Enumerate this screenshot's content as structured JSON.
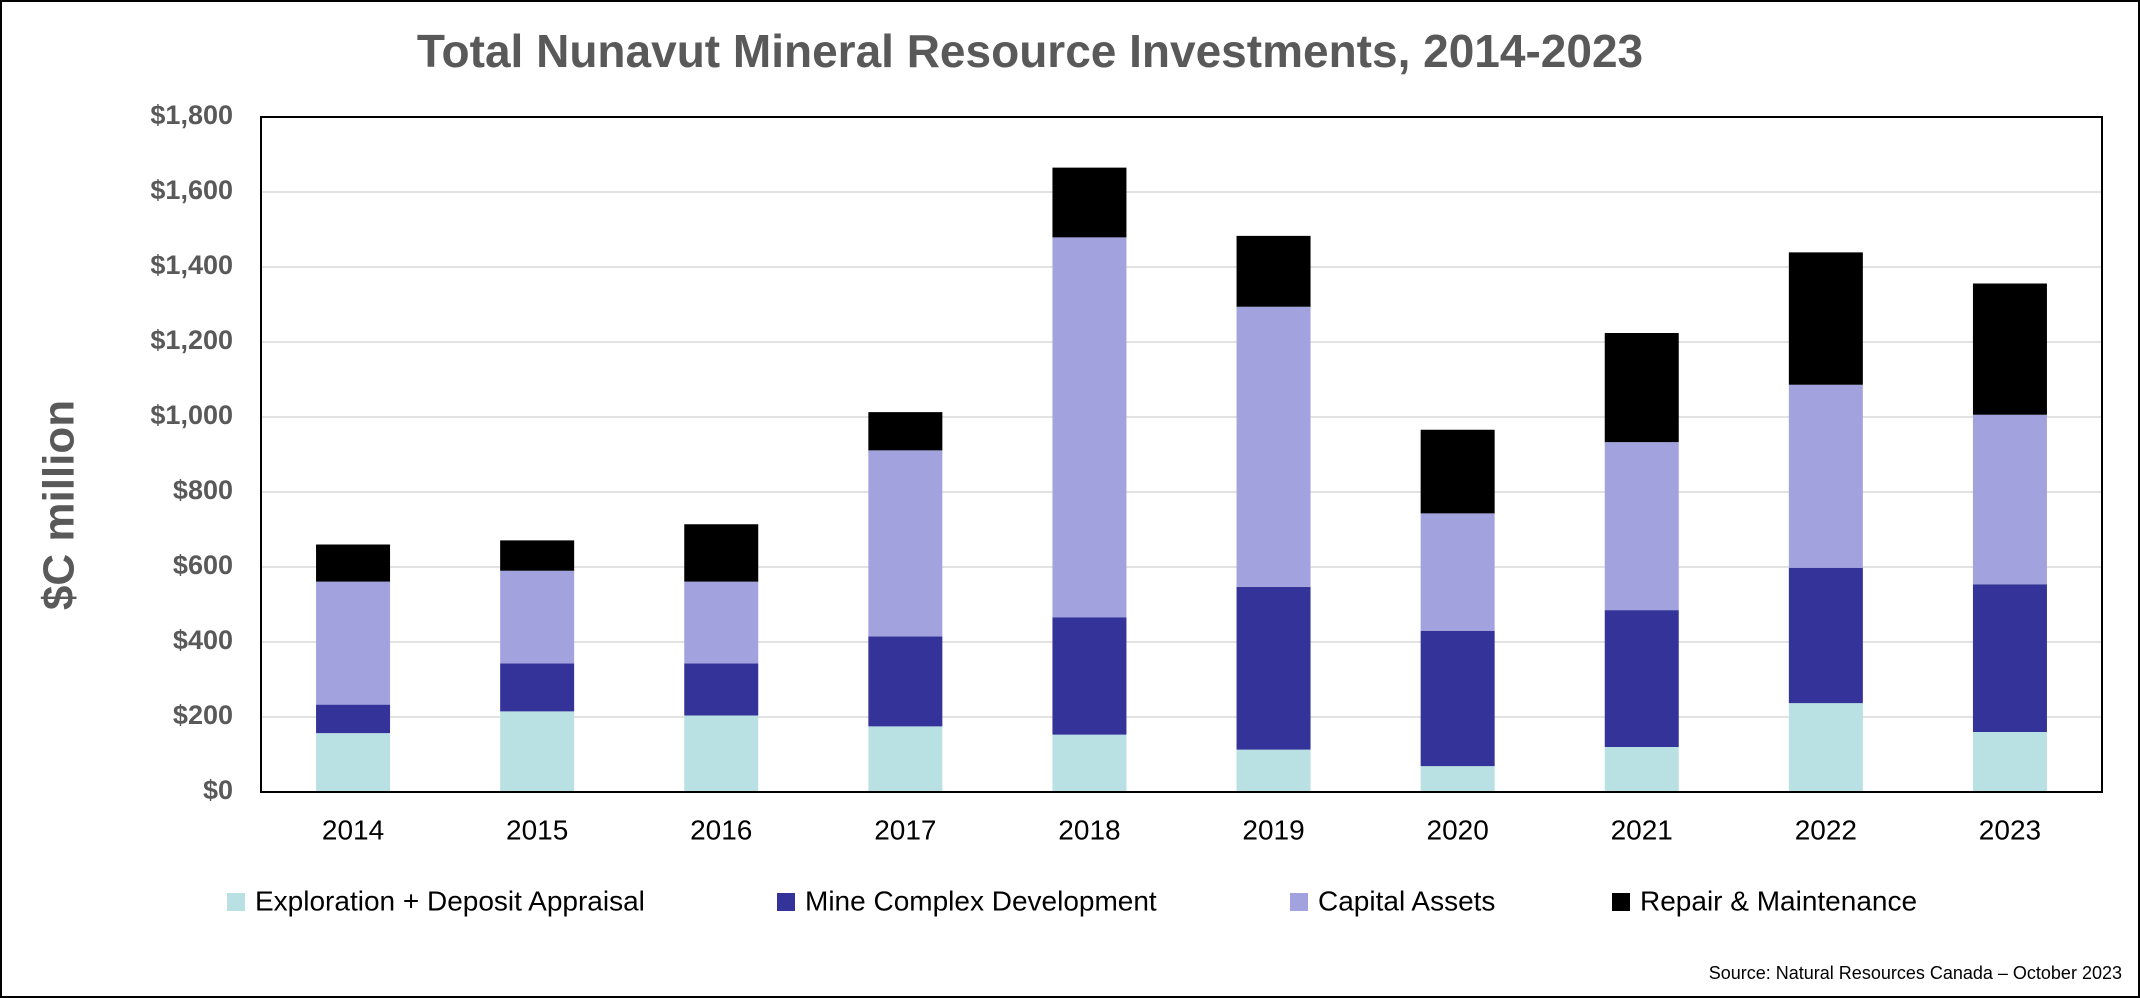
{
  "chart_data": {
    "type": "stacked_bar",
    "title": "Total Nunavut Mineral Resource Investments, 2014-2023",
    "y_label": "$C million",
    "source": "Source: Natural Resources Canada – October 2023",
    "categories": [
      "2014",
      "2015",
      "2016",
      "2017",
      "2018",
      "2019",
      "2020",
      "2021",
      "2022",
      "2023"
    ],
    "series": [
      {
        "name": "Exploration + Deposit Appraisal",
        "color": "#b9e0e3",
        "values": [
          157,
          215,
          204,
          175,
          153,
          113,
          69,
          120,
          237,
          160
        ]
      },
      {
        "name": "Mine Complex Development",
        "color": "#333399",
        "values": [
          76,
          128,
          139,
          240,
          313,
          434,
          361,
          365,
          361,
          394
        ]
      },
      {
        "name": "Capital Assets",
        "color": "#a2a2de",
        "values": [
          328,
          247,
          218,
          496,
          1013,
          747,
          313,
          448,
          488,
          452
        ]
      },
      {
        "name": "Repair & Maintenance",
        "color": "#000000",
        "values": [
          99,
          81,
          153,
          102,
          186,
          189,
          223,
          291,
          353,
          350
        ]
      }
    ],
    "ylim": [
      0,
      1800
    ],
    "yticks": [
      {
        "value": 0,
        "label": "$0"
      },
      {
        "value": 200,
        "label": "$200"
      },
      {
        "value": 400,
        "label": "$400"
      },
      {
        "value": 600,
        "label": "$600"
      },
      {
        "value": 800,
        "label": "$800"
      },
      {
        "value": 1000,
        "label": "$1,000"
      },
      {
        "value": 1200,
        "label": "$1,200"
      },
      {
        "value": 1400,
        "label": "$1,400"
      },
      {
        "value": 1600,
        "label": "$1,600"
      },
      {
        "value": 1800,
        "label": "$1,800"
      }
    ],
    "grid": true
  }
}
